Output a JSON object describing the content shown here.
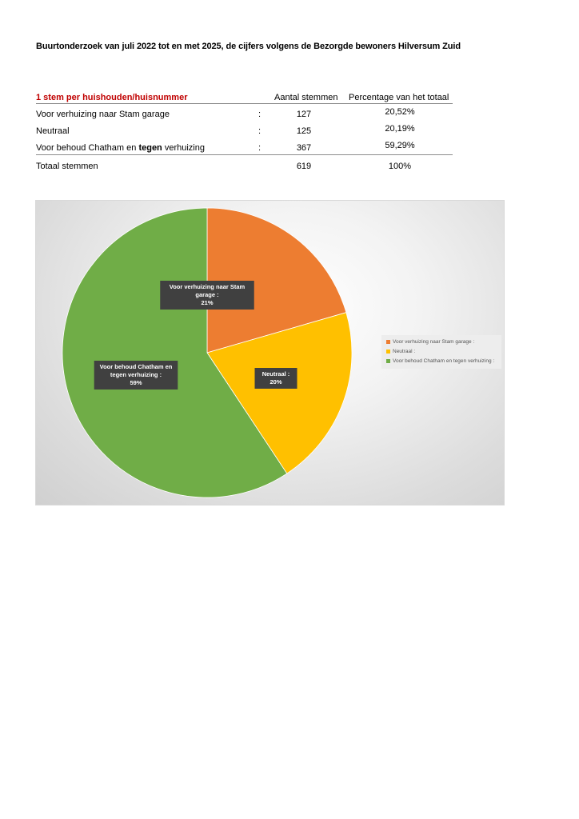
{
  "title": "Buurtonderzoek van juli 2022 tot en met 2025, de cijfers volgens de Bezorgde bewoners Hilversum Zuid",
  "table": {
    "header_label": "1 stem per huishouden/huisnummer",
    "col_votes": "Aantal stemmen",
    "col_percent": "Percentage van het totaal",
    "rows": [
      {
        "label": "Voor verhuizing naar Stam garage",
        "colon": ":",
        "votes": "127",
        "percent": "20,52%"
      },
      {
        "label": "Neutraal",
        "colon": ":",
        "votes": "125",
        "percent": "20,19%"
      },
      {
        "label_a": "Voor behoud Chatham en ",
        "label_bold": "tegen",
        "label_b": " verhuizing",
        "colon": ":",
        "votes": "367",
        "percent": "59,29%"
      }
    ],
    "total": {
      "label": "Totaal stemmen",
      "votes": "619",
      "percent": "100%"
    }
  },
  "chart_data": {
    "type": "pie",
    "slices": [
      {
        "name": "Voor verhuizing naar Stam garage :",
        "value": 127,
        "label_lines": [
          "Voor verhuizing naar Stam",
          "garage :",
          "21%"
        ],
        "color": "#ed7d31"
      },
      {
        "name": "Neutraal :",
        "value": 125,
        "label_lines": [
          "Neutraal :",
          "20%"
        ],
        "color": "#ffc000"
      },
      {
        "name": "Voor behoud Chatham en tegen verhuizing :",
        "value": 367,
        "label_lines": [
          "Voor behoud Chatham en",
          "tegen verhuizing :",
          "59%"
        ],
        "color": "#70ad47"
      }
    ],
    "legend_position": "right"
  }
}
